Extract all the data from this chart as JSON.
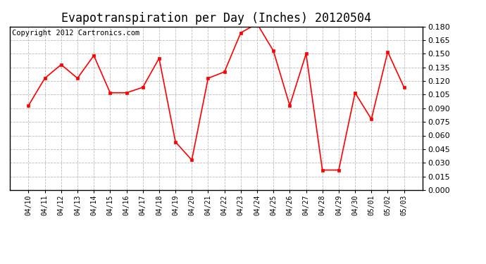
{
  "title": "Evapotranspiration per Day (Inches) 20120504",
  "copyright_text": "Copyright 2012 Cartronics.com",
  "dates": [
    "04/10",
    "04/11",
    "04/12",
    "04/13",
    "04/14",
    "04/15",
    "04/16",
    "04/17",
    "04/18",
    "04/19",
    "04/20",
    "04/21",
    "04/22",
    "04/23",
    "04/24",
    "04/25",
    "04/26",
    "04/27",
    "04/28",
    "04/29",
    "04/30",
    "05/01",
    "05/02",
    "05/03"
  ],
  "values": [
    0.093,
    0.123,
    0.138,
    0.123,
    0.148,
    0.107,
    0.107,
    0.113,
    0.145,
    0.053,
    0.033,
    0.123,
    0.13,
    0.173,
    0.183,
    0.153,
    0.093,
    0.15,
    0.022,
    0.022,
    0.107,
    0.078,
    0.152,
    0.113
  ],
  "line_color": "#ff0000",
  "marker": "s",
  "marker_size": 3,
  "ylim": [
    0.0,
    0.18
  ],
  "ytick_step": 0.015,
  "background_color": "#ffffff",
  "grid_color": "#bbbbbb",
  "title_fontsize": 12,
  "copyright_fontsize": 7.5
}
